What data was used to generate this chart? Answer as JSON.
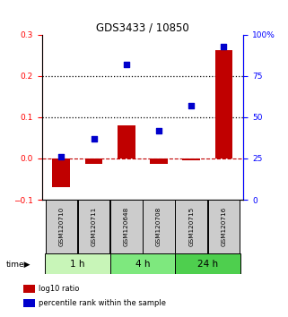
{
  "title": "GDS3433 / 10850",
  "samples": [
    "GSM120710",
    "GSM120711",
    "GSM120648",
    "GSM120708",
    "GSM120715",
    "GSM120716"
  ],
  "log10_ratio": [
    -0.07,
    -0.012,
    0.08,
    -0.012,
    -0.005,
    0.262
  ],
  "percentile_rank": [
    26,
    37,
    82,
    42,
    57,
    93
  ],
  "time_groups": [
    {
      "label": "1 h",
      "start": 0,
      "end": 2,
      "color": "#c8f5b8"
    },
    {
      "label": "4 h",
      "start": 2,
      "end": 4,
      "color": "#7ee87e"
    },
    {
      "label": "24 h",
      "start": 4,
      "end": 6,
      "color": "#4ecf4e"
    }
  ],
  "bar_color": "#c00000",
  "dot_color": "#0000cc",
  "ylim_left": [
    -0.1,
    0.3
  ],
  "ylim_right": [
    0,
    100
  ],
  "yticks_left": [
    -0.1,
    0.0,
    0.1,
    0.2,
    0.3
  ],
  "yticks_right": [
    0,
    25,
    50,
    75,
    100
  ],
  "ytick_labels_right": [
    "0",
    "25",
    "50",
    "75",
    "100%"
  ],
  "hline_dotted": [
    0.1,
    0.2
  ],
  "hline_dash": 0.0,
  "bar_width": 0.55,
  "dot_size": 25,
  "sample_box_color": "#cccccc",
  "legend_items": [
    {
      "color": "#c00000",
      "label": "log10 ratio"
    },
    {
      "color": "#0000cc",
      "label": "percentile rank within the sample"
    }
  ]
}
